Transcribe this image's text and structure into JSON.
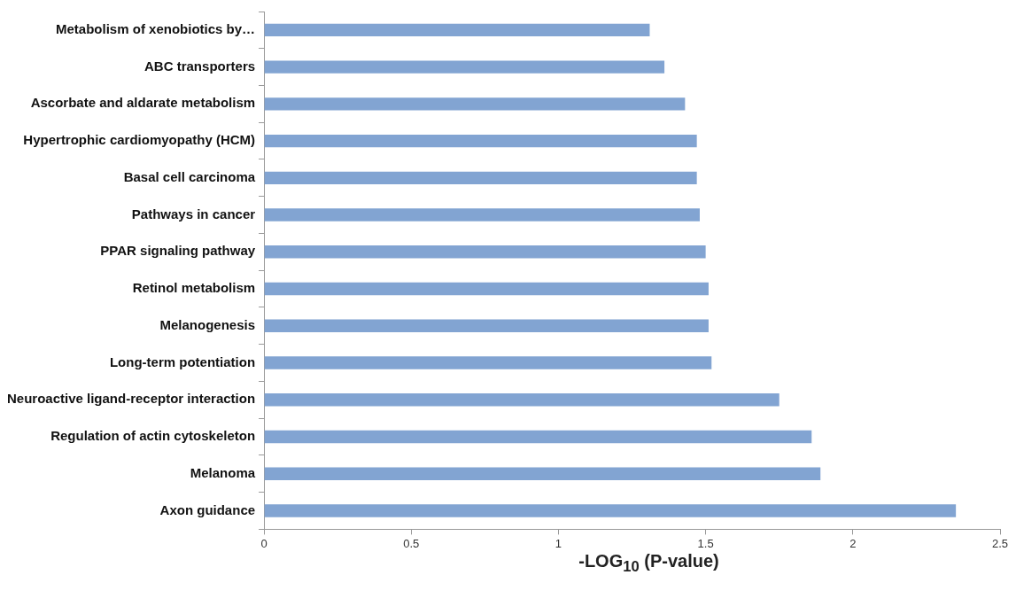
{
  "chart_data": {
    "type": "bar",
    "orientation": "horizontal",
    "xlabel": "-LOG$_{10}$ (P-value)",
    "categories": [
      "Metabolism of xenobiotics by…",
      "ABC transporters",
      "Ascorbate and aldarate metabolism",
      "Hypertrophic cardiomyopathy (HCM)",
      "Basal cell carcinoma",
      "Pathways in cancer",
      "PPAR signaling pathway",
      "Retinol metabolism",
      "Melanogenesis",
      "Long-term potentiation",
      "Neuroactive ligand-receptor interaction",
      "Regulation of actin cytoskeleton",
      "Melanoma",
      "Axon guidance"
    ],
    "values": [
      1.31,
      1.36,
      1.43,
      1.47,
      1.47,
      1.48,
      1.5,
      1.51,
      1.51,
      1.52,
      1.75,
      1.86,
      1.89,
      2.35
    ],
    "color": "#82a4d2",
    "xlim": [
      0,
      2.5
    ],
    "xticks": [
      0,
      0.5,
      1,
      1.5,
      2,
      2.5
    ],
    "grid": false,
    "legend": false
  }
}
